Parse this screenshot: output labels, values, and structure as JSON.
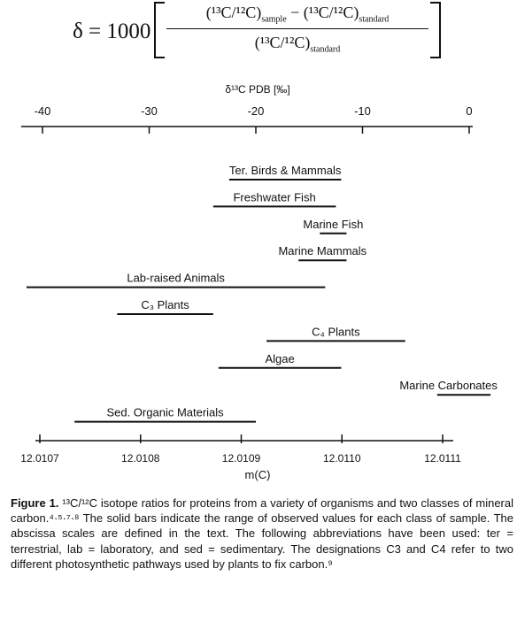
{
  "equation": {
    "lhs": "δ = 1000",
    "numerator": "(¹³C/¹²C)sample − (¹³C/¹²C)standard",
    "numerator_parts": {
      "ratio": "(¹³C/¹²C)",
      "sample_sub": "sample",
      "minus": " − ",
      "standard_sub": "standard"
    },
    "denominator_parts": {
      "ratio": "(¹³C/¹²C)",
      "standard_sub": "standard"
    }
  },
  "chart_data": {
    "type": "range-bar",
    "top_axis": {
      "label": "δ¹³C PDB [‰]",
      "range": [
        -42,
        0
      ],
      "ticks": [
        -40,
        -30,
        -20,
        -10,
        0
      ],
      "tick_labels": [
        "-40",
        "-30",
        "-20",
        "-10",
        "0"
      ]
    },
    "bottom_axis": {
      "label": "m(C)",
      "range": [
        12.01065,
        12.01115
      ],
      "ticks": [
        12.0107,
        12.0108,
        12.0109,
        12.011,
        12.0111
      ],
      "tick_labels": [
        "12.0107",
        "12.0108",
        "12.0109",
        "12.0110",
        "12.0111"
      ]
    },
    "categories": [
      {
        "label": "Ter. Birds & Mammals",
        "range": [
          -22.5,
          -12.0
        ]
      },
      {
        "label": "Freshwater Fish",
        "range": [
          -24.0,
          -12.5
        ]
      },
      {
        "label": "Marine Fish",
        "range": [
          -14.0,
          -11.5
        ]
      },
      {
        "label": "Marine Mammals",
        "range": [
          -16.0,
          -11.5
        ]
      },
      {
        "label": "Lab-raised Animals",
        "range": [
          -41.5,
          -13.5
        ]
      },
      {
        "label": "C₃ Plants",
        "range": [
          -33.0,
          -24.0
        ]
      },
      {
        "label": "C₄ Plants",
        "range": [
          -19.0,
          -6.0
        ]
      },
      {
        "label": "Algae",
        "range": [
          -23.5,
          -12.0
        ]
      },
      {
        "label": "Marine Carbonates",
        "range": [
          -3.0,
          2.0
        ]
      },
      {
        "label": "Sed. Organic Materials",
        "range": [
          -37.0,
          -20.0
        ]
      }
    ]
  },
  "caption": {
    "label": "Figure 1.",
    "text": "¹³C/¹²C isotope ratios for proteins from a variety of organisms and two classes of mineral carbon.⁴·⁵·⁷·⁸ The solid bars indicate the range of observed values for each class of sample. The abscissa scales are defined in the text. The following abbreviations have been used: ter = terrestrial, lab = laboratory, and sed = sedimentary. The designations C3 and C4 refer to two different photosynthetic pathways used by plants to fix carbon.⁹"
  }
}
